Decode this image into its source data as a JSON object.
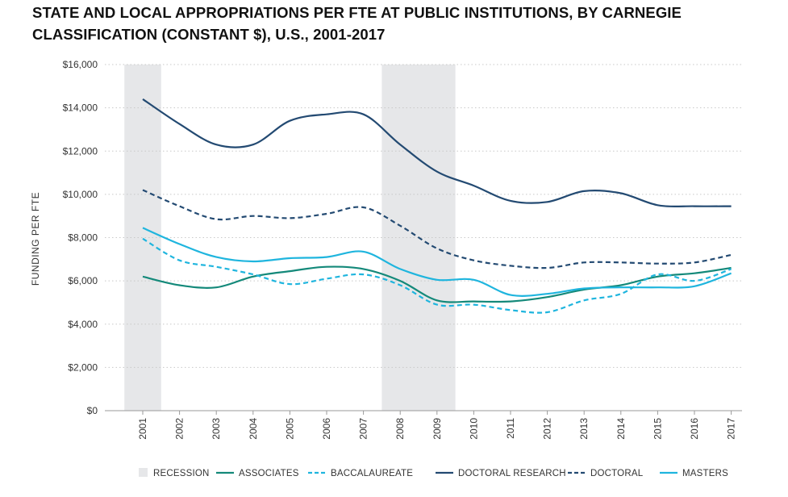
{
  "chart_data": {
    "type": "line",
    "title_lines": [
      "STATE AND LOCAL APPROPRIATIONS PER FTE AT PUBLIC INSTITUTIONS, BY CARNEGIE",
      "CLASSIFICATION (CONSTANT $), U.S., 2001-2017"
    ],
    "ylabel": "FUNDING PER FTE",
    "xlabel": "",
    "ylim": [
      0,
      16000
    ],
    "y_ticks": [
      0,
      2000,
      4000,
      6000,
      8000,
      10000,
      12000,
      14000,
      16000
    ],
    "y_tick_labels": [
      "$0",
      "$2,000",
      "$4,000",
      "$6,000",
      "$8,000",
      "$10,000",
      "$12,000",
      "$14,000",
      "$16,000"
    ],
    "x": [
      "2001",
      "2002",
      "2003",
      "2004",
      "2005",
      "2006",
      "2007",
      "2008",
      "2009",
      "2010",
      "2011",
      "2012",
      "2013",
      "2014",
      "2015",
      "2016",
      "2017"
    ],
    "grid": "horizontal-dotted",
    "legend_position": "bottom",
    "recessions": [
      {
        "start": "2001",
        "end": "2002"
      },
      {
        "start": "2008",
        "end": "2010"
      }
    ],
    "recession_label": "RECESSION",
    "recession_color": "#e6e7e9",
    "series": [
      {
        "name": "ASSOCIATES",
        "color": "#14897a",
        "dash": "solid",
        "values": [
          6200,
          5800,
          5700,
          6200,
          6450,
          6650,
          6550,
          6000,
          5100,
          5050,
          5050,
          5250,
          5600,
          5800,
          6200,
          6350,
          6600
        ]
      },
      {
        "name": "BACCALAUREATE",
        "color": "#1fb5de",
        "dash": "dashed",
        "values": [
          7950,
          6950,
          6650,
          6300,
          5850,
          6100,
          6300,
          5800,
          4900,
          4900,
          4650,
          4550,
          5100,
          5400,
          6300,
          6000,
          6550
        ]
      },
      {
        "name": "DOCTORAL RESEARCH",
        "color": "#234a72",
        "dash": "solid",
        "values": [
          14400,
          13250,
          12300,
          12300,
          13400,
          13700,
          13700,
          12300,
          11050,
          10400,
          9700,
          9650,
          10150,
          10050,
          9500,
          9450,
          9450
        ]
      },
      {
        "name": "DOCTORAL",
        "color": "#234a72",
        "dash": "dashed",
        "values": [
          10200,
          9450,
          8850,
          9000,
          8900,
          9100,
          9400,
          8550,
          7500,
          6950,
          6700,
          6600,
          6850,
          6850,
          6800,
          6850,
          7200
        ]
      },
      {
        "name": "MASTERS",
        "color": "#1fb5de",
        "dash": "solid",
        "values": [
          8450,
          7700,
          7100,
          6900,
          7050,
          7100,
          7350,
          6550,
          6050,
          6050,
          5350,
          5400,
          5650,
          5700,
          5700,
          5750,
          6350
        ]
      }
    ]
  }
}
